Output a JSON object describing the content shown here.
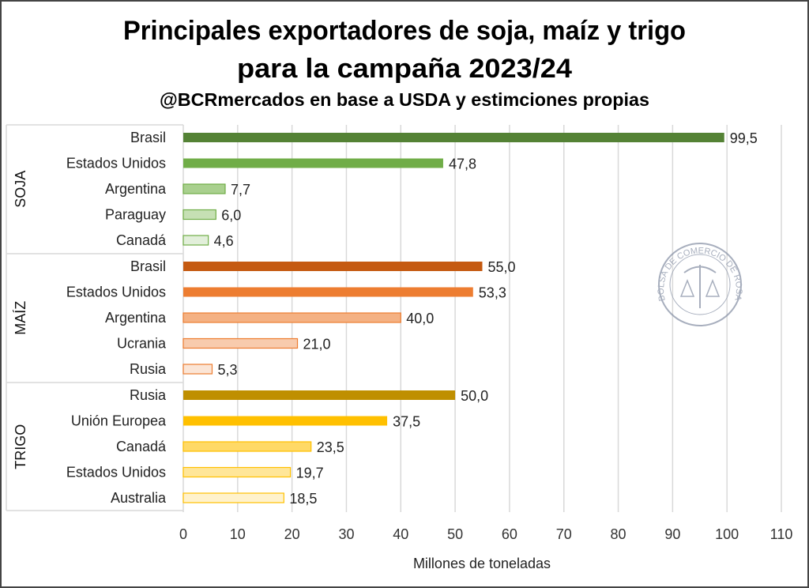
{
  "chart_data": {
    "type": "bar",
    "orientation": "horizontal",
    "title": "Principales exportadores de soja, maíz y trigo",
    "title_line2": "para la campaña 2023/24",
    "subtitle": "@BCRmercados en base a USDA y estimciones propias",
    "xlabel": "Millones de toneladas",
    "xlim": [
      0,
      110
    ],
    "xticks": [
      "0",
      "10",
      "20",
      "30",
      "40",
      "50",
      "60",
      "70",
      "80",
      "90",
      "100",
      "110"
    ],
    "grid": "vertical",
    "groups": [
      {
        "name": "SOJA",
        "items": [
          {
            "label": "Brasil",
            "value": 99.5,
            "value_label": "99,5",
            "color": "#548235"
          },
          {
            "label": "Estados Unidos",
            "value": 47.8,
            "value_label": "47,8",
            "color": "#70ad47"
          },
          {
            "label": "Argentina",
            "value": 7.7,
            "value_label": "7,7",
            "color": "#a9d08e"
          },
          {
            "label": "Paraguay",
            "value": 6.0,
            "value_label": "6,0",
            "color": "#c6e0b4"
          },
          {
            "label": "Canadá",
            "value": 4.6,
            "value_label": "4,6",
            "color": "#e2efda"
          }
        ]
      },
      {
        "name": "MAÍZ",
        "items": [
          {
            "label": "Brasil",
            "value": 55.0,
            "value_label": "55,0",
            "color": "#c55a11"
          },
          {
            "label": "Estados Unidos",
            "value": 53.3,
            "value_label": "53,3",
            "color": "#ed7d31"
          },
          {
            "label": "Argentina",
            "value": 40.0,
            "value_label": "40,0",
            "color": "#f4b183"
          },
          {
            "label": "Ucrania",
            "value": 21.0,
            "value_label": "21,0",
            "color": "#f8cbad"
          },
          {
            "label": "Rusia",
            "value": 5.3,
            "value_label": "5,3",
            "color": "#fbe5d6"
          }
        ]
      },
      {
        "name": "TRIGO",
        "items": [
          {
            "label": "Rusia",
            "value": 50.0,
            "value_label": "50,0",
            "color": "#bf8f00"
          },
          {
            "label": "Unión Europea",
            "value": 37.5,
            "value_label": "37,5",
            "color": "#ffc000"
          },
          {
            "label": "Canadá",
            "value": 23.5,
            "value_label": "23,5",
            "color": "#ffd966"
          },
          {
            "label": "Estados Unidos",
            "value": 19.7,
            "value_label": "19,7",
            "color": "#ffe699"
          },
          {
            "label": "Australia",
            "value": 18.5,
            "value_label": "18,5",
            "color": "#fff2cc"
          }
        ]
      }
    ]
  },
  "watermark": {
    "text": "BOLSA DE COMERCIO DE ROSARIO",
    "color": "#8a94a8"
  }
}
